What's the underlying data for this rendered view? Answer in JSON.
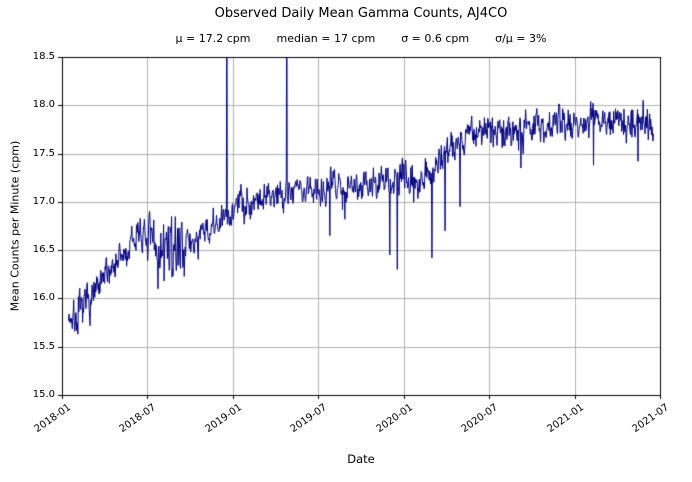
{
  "chart_data": {
    "type": "line",
    "title": "Observed Daily Mean Gamma Counts, AJ4CO",
    "stats": [
      "μ = 17.2 cpm",
      "median = 17 cpm",
      "σ = 0.6 cpm",
      "σ/μ = 3%"
    ],
    "xlabel": "Date",
    "ylabel": "Mean Counts per Minute (cpm)",
    "ylim": [
      15.0,
      18.5
    ],
    "yticks": [
      "15.0",
      "15.5",
      "16.0",
      "16.5",
      "17.0",
      "17.5",
      "18.0",
      "18.5"
    ],
    "grid": true,
    "line_color": "#000080",
    "grid_color": "#b0b0b0",
    "x_axis": {
      "start_day": 0,
      "end_day": 1277,
      "ticks": [
        {
          "day": 0,
          "label": "2018-01"
        },
        {
          "day": 181,
          "label": "2018-07"
        },
        {
          "day": 365,
          "label": "2019-01"
        },
        {
          "day": 546,
          "label": "2019-07"
        },
        {
          "day": 730,
          "label": "2020-01"
        },
        {
          "day": 912,
          "label": "2020-07"
        },
        {
          "day": 1096,
          "label": "2021-01"
        },
        {
          "day": 1277,
          "label": "2021-07"
        }
      ]
    },
    "series": {
      "name": "daily-mean-gamma-counts",
      "start_day": 14,
      "end_day": 1263,
      "seed": 7,
      "noise_sigma": 0.085,
      "noise_sigma_segments": [
        [
          14,
          60,
          0.095
        ],
        [
          185,
          265,
          0.14
        ]
      ],
      "trend_keypoints": [
        [
          14,
          15.85
        ],
        [
          25,
          15.78
        ],
        [
          40,
          15.85
        ],
        [
          60,
          16.0
        ],
        [
          80,
          16.1
        ],
        [
          100,
          16.3
        ],
        [
          120,
          16.4
        ],
        [
          140,
          16.45
        ],
        [
          158,
          16.65
        ],
        [
          166,
          16.75
        ],
        [
          175,
          16.6
        ],
        [
          190,
          16.55
        ],
        [
          205,
          16.5
        ],
        [
          220,
          16.55
        ],
        [
          235,
          16.5
        ],
        [
          250,
          16.55
        ],
        [
          262,
          16.6
        ],
        [
          270,
          16.55
        ],
        [
          285,
          16.6
        ],
        [
          300,
          16.65
        ],
        [
          315,
          16.7
        ],
        [
          330,
          16.75
        ],
        [
          345,
          16.8
        ],
        [
          358,
          16.85
        ],
        [
          368,
          16.95
        ],
        [
          380,
          17.0
        ],
        [
          400,
          17.0
        ],
        [
          420,
          17.05
        ],
        [
          440,
          17.05
        ],
        [
          460,
          17.1
        ],
        [
          480,
          17.1
        ],
        [
          500,
          17.15
        ],
        [
          520,
          17.1
        ],
        [
          540,
          17.15
        ],
        [
          560,
          17.15
        ],
        [
          580,
          17.2
        ],
        [
          600,
          17.15
        ],
        [
          620,
          17.2
        ],
        [
          645,
          17.2
        ],
        [
          665,
          17.15
        ],
        [
          685,
          17.2
        ],
        [
          705,
          17.2
        ],
        [
          730,
          17.25
        ],
        [
          755,
          17.2
        ],
        [
          775,
          17.3
        ],
        [
          795,
          17.35
        ],
        [
          815,
          17.5
        ],
        [
          835,
          17.6
        ],
        [
          855,
          17.65
        ],
        [
          875,
          17.75
        ],
        [
          895,
          17.7
        ],
        [
          915,
          17.75
        ],
        [
          940,
          17.7
        ],
        [
          965,
          17.75
        ],
        [
          990,
          17.8
        ],
        [
          1015,
          17.75
        ],
        [
          1040,
          17.8
        ],
        [
          1065,
          17.85
        ],
        [
          1090,
          17.8
        ],
        [
          1115,
          17.85
        ],
        [
          1140,
          17.85
        ],
        [
          1165,
          17.8
        ],
        [
          1190,
          17.85
        ],
        [
          1215,
          17.8
        ],
        [
          1240,
          17.85
        ],
        [
          1263,
          17.8
        ]
      ],
      "up_spikes": [
        [
          352,
          19.6
        ],
        [
          480,
          19.6
        ]
      ],
      "down_spikes": [
        [
          34,
          15.63
        ],
        [
          205,
          16.1
        ],
        [
          218,
          16.18
        ],
        [
          235,
          16.22
        ],
        [
          572,
          16.65
        ],
        [
          604,
          16.82
        ],
        [
          700,
          16.45
        ],
        [
          716,
          16.3
        ],
        [
          790,
          16.42
        ],
        [
          818,
          16.7
        ],
        [
          850,
          16.95
        ],
        [
          980,
          17.35
        ],
        [
          1135,
          17.38
        ],
        [
          1230,
          17.42
        ]
      ]
    }
  }
}
